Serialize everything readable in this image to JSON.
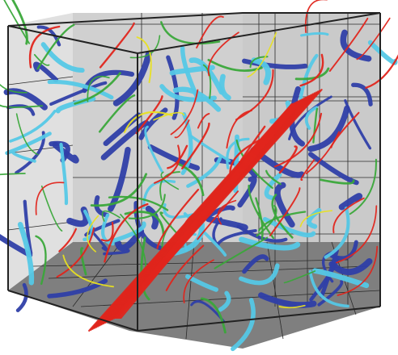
{
  "figure": {
    "kind": "3d-box-visualization",
    "box": {
      "wall_color": "#d0d0d0",
      "left_wall_color": "#e0e0e0",
      "floor_color": "#7f7f7f",
      "edge_color": "#222222",
      "grid_color": "#2a2a2a"
    },
    "palette": {
      "red": "#e0251c",
      "green": "#3aa83a",
      "light_blue": "#55c8e6",
      "dark_blue": "#2f3fa8",
      "yellow": "#e8e020"
    },
    "main_feature": {
      "color": "red",
      "description_visible": false
    }
  }
}
